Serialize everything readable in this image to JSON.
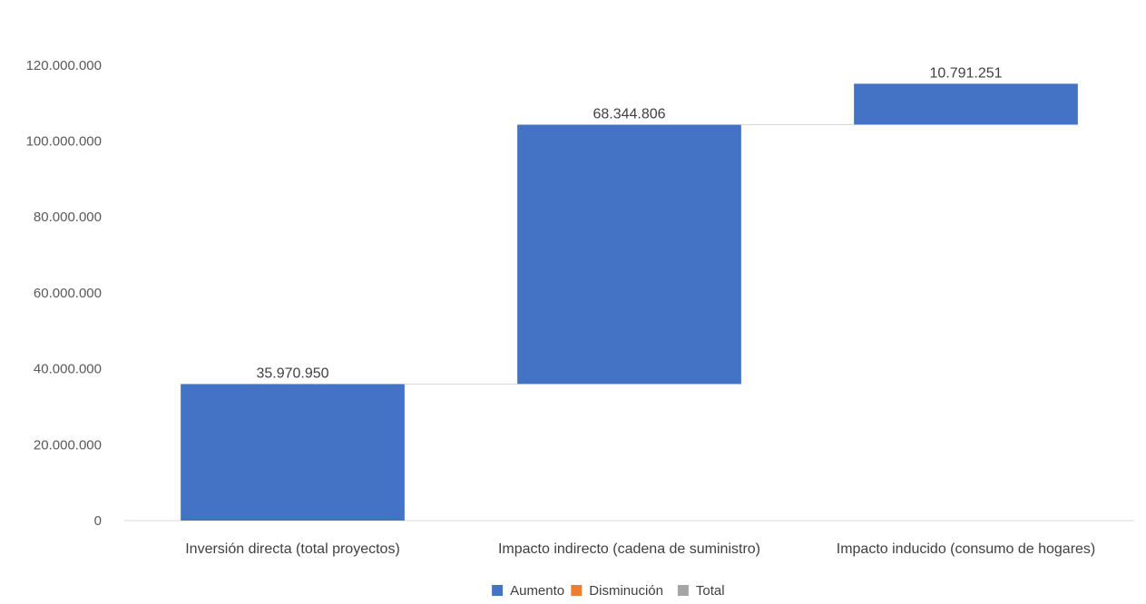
{
  "chart_data": {
    "type": "waterfall",
    "categories": [
      "Inversión directa (total proyectos)",
      "Impacto indirecto (cadena de suministro)",
      "Impacto inducido (consumo de hogares)"
    ],
    "values": [
      35970950,
      68344806,
      10791251
    ],
    "data_labels": [
      "35.970.950",
      "68.344.806",
      "10.791.251"
    ],
    "y_ticks": [
      0,
      20000000,
      40000000,
      60000000,
      80000000,
      100000000,
      120000000
    ],
    "y_tick_labels": [
      "0",
      "20.000.000",
      "40.000.000",
      "60.000.000",
      "80.000.000",
      "100.000.000",
      "120.000.000"
    ],
    "ylim": [
      0,
      130000000
    ],
    "grid": false,
    "connector_lines": true,
    "legend": {
      "position": "bottom",
      "entries": [
        {
          "label": "Aumento",
          "color": "#4472C4"
        },
        {
          "label": "Disminución",
          "color": "#ED7D31"
        },
        {
          "label": "Total",
          "color": "#A5A5A5"
        }
      ]
    },
    "colors": {
      "increase": "#4472C4",
      "axis": "#D9D9D9",
      "connector": "#D9D9D9"
    }
  }
}
